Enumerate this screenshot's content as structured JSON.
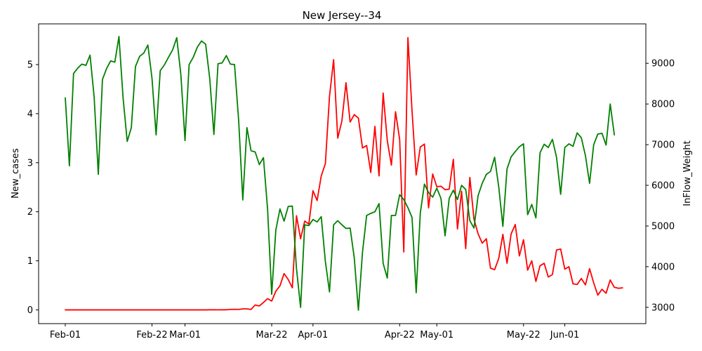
{
  "chart_data": {
    "type": "line",
    "title": "New Jersey--34",
    "xlabel": "",
    "ylabel_left": "New_cases",
    "ylabel_right": "InFlow_Weight",
    "grid": false,
    "legend": "none",
    "x_start": "2020-02-01",
    "x_end": "2020-06-14",
    "x_ticks": [
      {
        "date": "2020-02-01",
        "label": "Feb-01"
      },
      {
        "date": "2020-02-22",
        "label": "Feb-22"
      },
      {
        "date": "2020-03-01",
        "label": "Mar-01"
      },
      {
        "date": "2020-03-22",
        "label": "Mar-22"
      },
      {
        "date": "2020-04-01",
        "label": "Apr-01"
      },
      {
        "date": "2020-04-22",
        "label": "Apr-22"
      },
      {
        "date": "2020-05-01",
        "label": "May-01"
      },
      {
        "date": "2020-05-22",
        "label": "May-22"
      },
      {
        "date": "2020-06-01",
        "label": "Jun-01"
      }
    ],
    "ylim_left": [
      -0.28,
      5.83
    ],
    "yticks_left": [
      0,
      1,
      2,
      3,
      4,
      5
    ],
    "ylim_right": [
      2600,
      9970
    ],
    "yticks_right": [
      3000,
      4000,
      5000,
      6000,
      7000,
      8000,
      9000
    ],
    "series": [
      {
        "axis": "left",
        "color": "#ff0000",
        "values": [
          0,
          0,
          0,
          0,
          0,
          0,
          0,
          0,
          0,
          0,
          0,
          0,
          0,
          0,
          0,
          0,
          0,
          0,
          0,
          0,
          0,
          0,
          0,
          0,
          0,
          0,
          0,
          0,
          0,
          0,
          0,
          0,
          0,
          0,
          0,
          0.002,
          0.002,
          0.001,
          0.003,
          0.002,
          0.01,
          0.012,
          0.01,
          0.02,
          0.02,
          0.01,
          0.1,
          0.08,
          0.15,
          0.23,
          0.18,
          0.38,
          0.49,
          0.74,
          0.62,
          0.45,
          1.92,
          1.45,
          1.81,
          1.75,
          2.43,
          2.23,
          2.73,
          2.98,
          4.35,
          5.1,
          3.5,
          3.85,
          4.63,
          3.83,
          3.98,
          3.91,
          3.3,
          3.35,
          2.8,
          3.74,
          2.73,
          4.42,
          3.45,
          2.95,
          4.04,
          3.47,
          1.18,
          5.55,
          4.05,
          2.75,
          3.32,
          3.38,
          2.08,
          2.77,
          2.51,
          2.52,
          2.45,
          2.46,
          3.07,
          1.65,
          2.42,
          1.25,
          2.7,
          1.85,
          1.55,
          1.36,
          1.45,
          0.85,
          0.82,
          1.05,
          1.54,
          0.95,
          1.55,
          1.74,
          1.1,
          1.43,
          0.81,
          1.0,
          0.58,
          0.9,
          0.95,
          0.67,
          0.72,
          1.22,
          1.24,
          0.83,
          0.88,
          0.53,
          0.52,
          0.64,
          0.51,
          0.84,
          0.55,
          0.3,
          0.42,
          0.34,
          0.61,
          0.46,
          0.44,
          0.45
        ]
      },
      {
        "axis": "right",
        "color": "#008000",
        "values": [
          8150,
          6480,
          8750,
          8880,
          8980,
          8950,
          9200,
          8160,
          6270,
          8600,
          8870,
          9060,
          9030,
          9660,
          8150,
          7080,
          7420,
          8920,
          9170,
          9250,
          9450,
          8640,
          7240,
          8820,
          8960,
          9150,
          9330,
          9630,
          8720,
          7100,
          8970,
          9150,
          9400,
          9550,
          9470,
          8620,
          7250,
          8990,
          9010,
          9190,
          8980,
          8970,
          7590,
          5640,
          7420,
          6850,
          6820,
          6510,
          6680,
          5420,
          3320,
          4900,
          5420,
          5120,
          5480,
          5490,
          3960,
          3000,
          5030,
          5010,
          5160,
          5100,
          5230,
          4130,
          3380,
          5030,
          5130,
          5030,
          4940,
          4950,
          4220,
          2930,
          4360,
          5260,
          5310,
          5350,
          5550,
          4080,
          3720,
          5260,
          5260,
          5770,
          5650,
          5450,
          5210,
          3360,
          5320,
          6030,
          5820,
          5710,
          5930,
          5680,
          4760,
          5680,
          5880,
          5650,
          6000,
          5900,
          5130,
          4950,
          5750,
          6050,
          6270,
          6340,
          6690,
          5960,
          4990,
          6400,
          6700,
          6830,
          6950,
          7020,
          5280,
          5530,
          5200,
          6800,
          7010,
          6930,
          7130,
          6690,
          5780,
          6930,
          7020,
          6960,
          7290,
          7170,
          6730,
          6050,
          7000,
          7260,
          7280,
          6990,
          8000,
          7240
        ]
      }
    ]
  }
}
